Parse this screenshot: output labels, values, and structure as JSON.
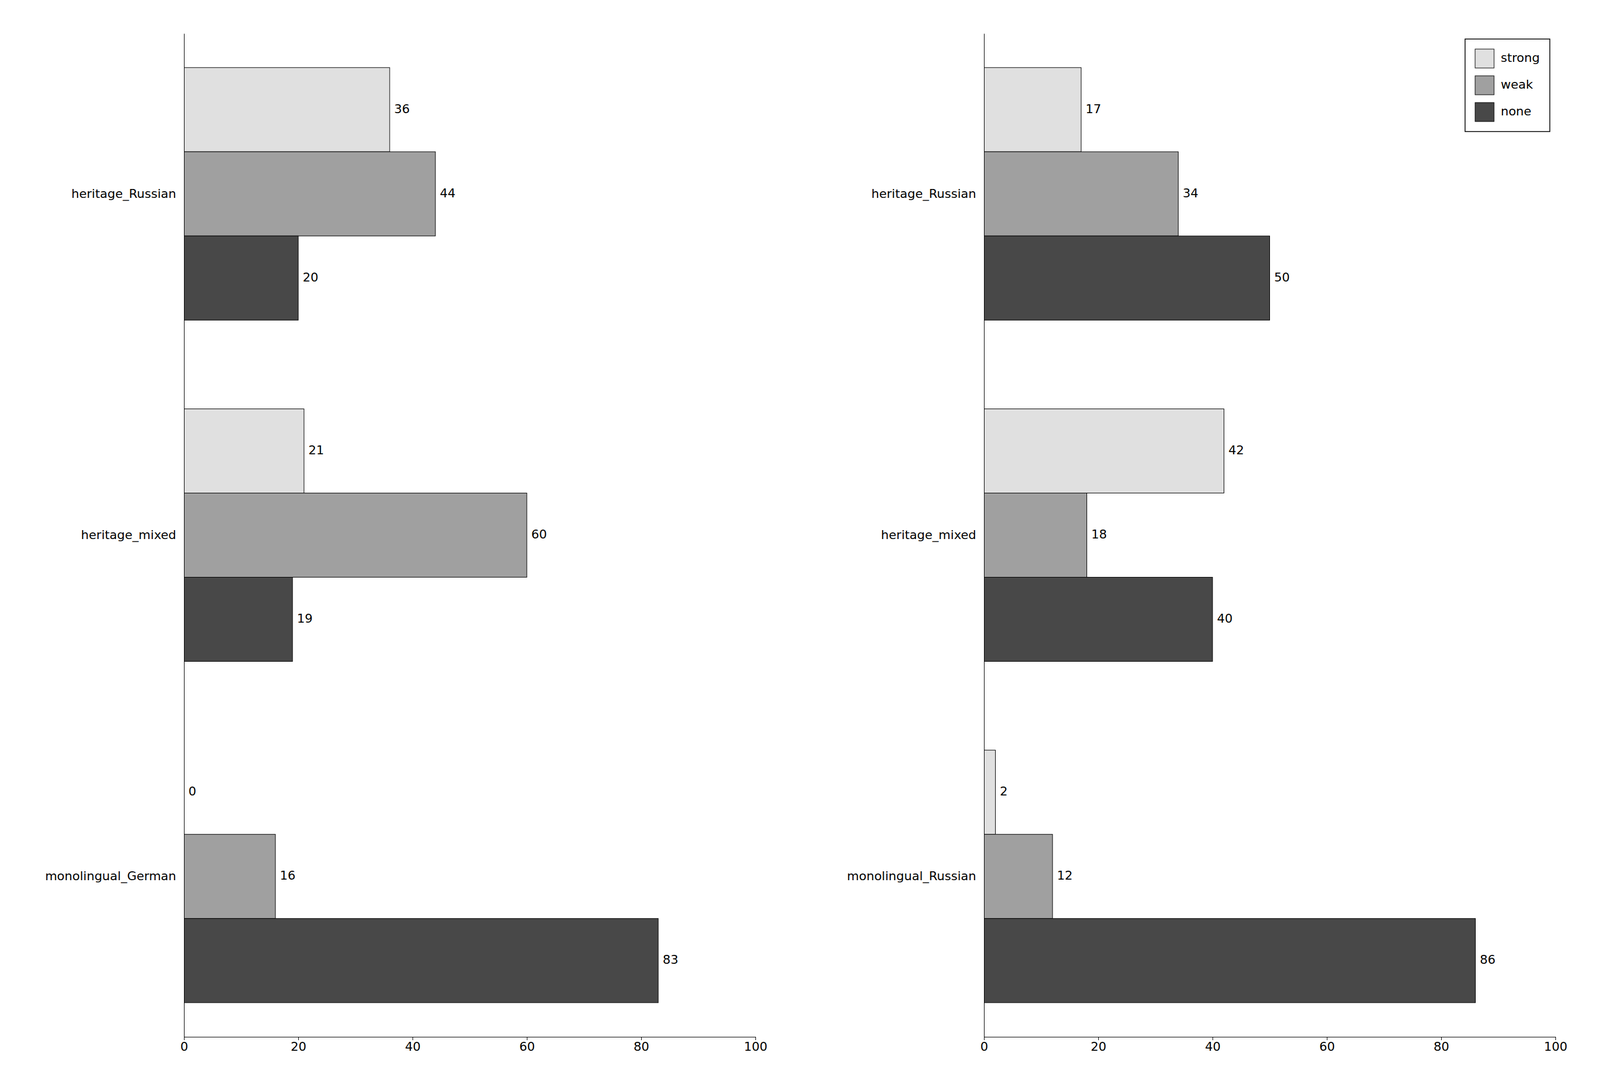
{
  "chart_data": [
    {
      "type": "bar",
      "orientation": "horizontal",
      "categories": [
        "heritage_Russian",
        "heritage_mixed",
        "monolingual_German"
      ],
      "series": [
        {
          "name": "strong",
          "color": "#e0e0e0",
          "values": [
            36,
            21,
            0
          ]
        },
        {
          "name": "weak",
          "color": "#a0a0a0",
          "values": [
            44,
            60,
            16
          ]
        },
        {
          "name": "none",
          "color": "#484848",
          "values": [
            20,
            19,
            83
          ]
        }
      ],
      "xlim": [
        0,
        100
      ],
      "xticks": [
        0,
        20,
        40,
        60,
        80,
        100
      ],
      "data_labels": true,
      "grid": false,
      "legend": false
    },
    {
      "type": "bar",
      "orientation": "horizontal",
      "categories": [
        "heritage_Russian",
        "heritage_mixed",
        "monolingual_Russian"
      ],
      "series": [
        {
          "name": "strong",
          "color": "#e0e0e0",
          "values": [
            17,
            42,
            2
          ]
        },
        {
          "name": "weak",
          "color": "#a0a0a0",
          "values": [
            34,
            18,
            12
          ]
        },
        {
          "name": "none",
          "color": "#484848",
          "values": [
            50,
            40,
            86
          ]
        }
      ],
      "xlim": [
        0,
        100
      ],
      "xticks": [
        0,
        20,
        40,
        60,
        80,
        100
      ],
      "data_labels": true,
      "grid": false,
      "legend": "upper right"
    }
  ]
}
